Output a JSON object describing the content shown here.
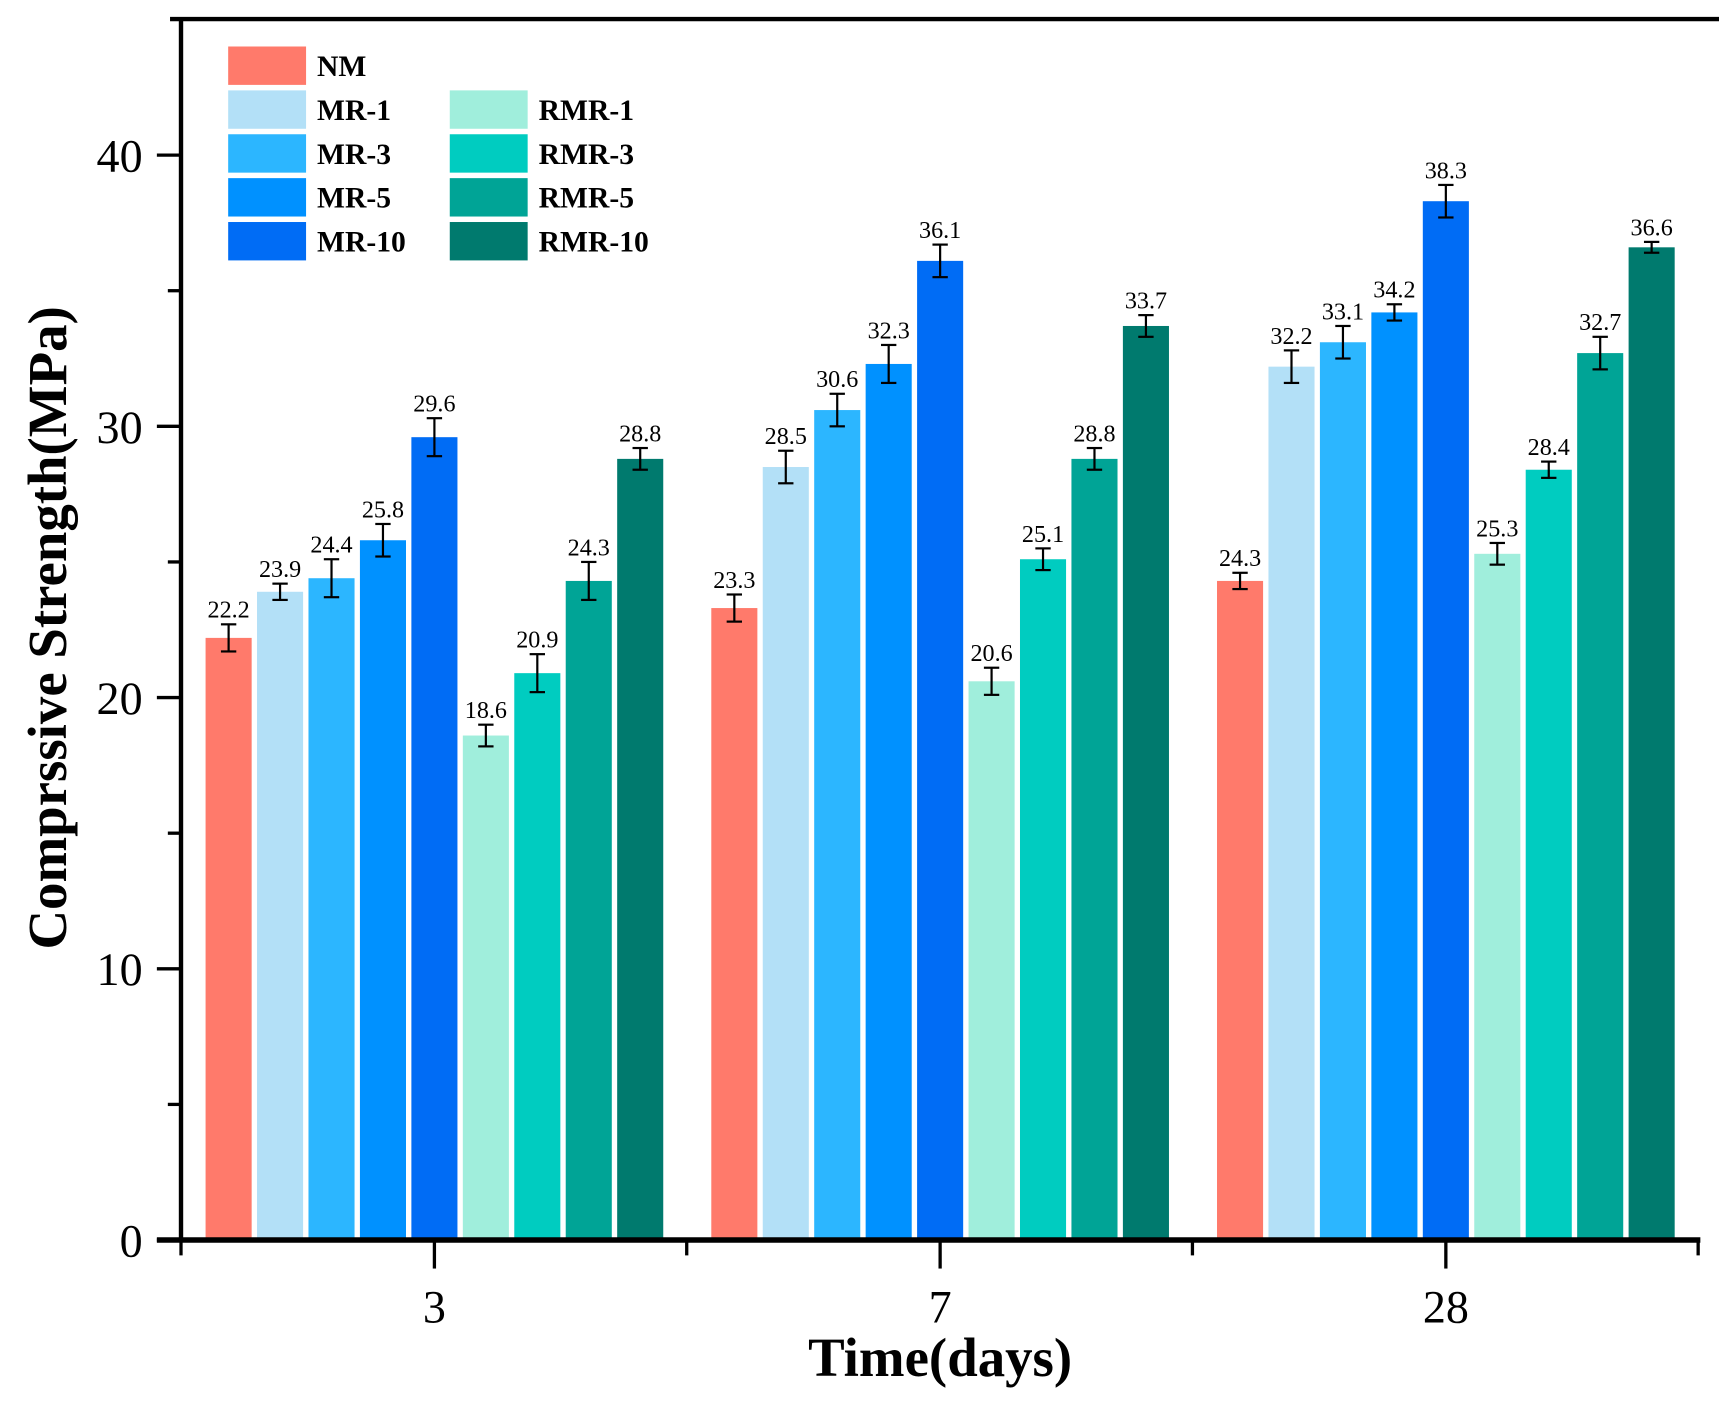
{
  "chart_data": {
    "type": "bar",
    "title": "",
    "xlabel": "Time(days)",
    "ylabel": "Comprssive Strength(MPa)",
    "ylim": [
      0,
      45
    ],
    "yticks": [
      "0",
      "10",
      "20",
      "30",
      "40"
    ],
    "categories": [
      "3",
      "7",
      "28"
    ],
    "legend_position": "top-left",
    "grid": false,
    "series": [
      {
        "name": "NM",
        "color": "#FF7A6B",
        "values": [
          22.2,
          23.3,
          24.3
        ],
        "errors": [
          0.5,
          0.5,
          0.3
        ],
        "labels": [
          "22.2",
          "23.3",
          "24.3"
        ]
      },
      {
        "name": "MR-1",
        "color": "#B3E0F7",
        "values": [
          23.9,
          28.5,
          32.2
        ],
        "errors": [
          0.3,
          0.6,
          0.6
        ],
        "labels": [
          "23.9",
          "28.5",
          "32.2"
        ]
      },
      {
        "name": "MR-3",
        "color": "#2CB6FF",
        "values": [
          24.4,
          30.6,
          33.1
        ],
        "errors": [
          0.7,
          0.6,
          0.6
        ],
        "labels": [
          "24.4",
          "30.6",
          "33.1"
        ]
      },
      {
        "name": "MR-5",
        "color": "#0091FF",
        "values": [
          25.8,
          32.3,
          34.2
        ],
        "errors": [
          0.6,
          0.7,
          0.3
        ],
        "labels": [
          "25.8",
          "32.3",
          "34.2"
        ]
      },
      {
        "name": "MR-10",
        "color": "#006CF5",
        "values": [
          29.6,
          36.1,
          38.3
        ],
        "errors": [
          0.7,
          0.6,
          0.6
        ],
        "labels": [
          "29.6",
          "36.1",
          "38.3"
        ]
      },
      {
        "name": "RMR-1",
        "color": "#A0EEDC",
        "values": [
          18.6,
          20.6,
          25.3
        ],
        "errors": [
          0.4,
          0.5,
          0.4
        ],
        "labels": [
          "18.6",
          "20.6",
          "25.3"
        ]
      },
      {
        "name": "RMR-3",
        "color": "#00CCC0",
        "values": [
          20.9,
          25.1,
          28.4
        ],
        "errors": [
          0.7,
          0.4,
          0.3
        ],
        "labels": [
          "20.9",
          "25.1",
          "28.4"
        ]
      },
      {
        "name": "RMR-5",
        "color": "#00A496",
        "values": [
          24.3,
          28.8,
          32.7
        ],
        "errors": [
          0.7,
          0.4,
          0.6
        ],
        "labels": [
          "24.3",
          "28.8",
          "32.7"
        ]
      },
      {
        "name": "RMR-10",
        "color": "#007A6E",
        "values": [
          28.8,
          33.7,
          36.6
        ],
        "errors": [
          0.4,
          0.4,
          0.2
        ],
        "labels": [
          "28.8",
          "33.7",
          "36.6"
        ]
      }
    ]
  }
}
